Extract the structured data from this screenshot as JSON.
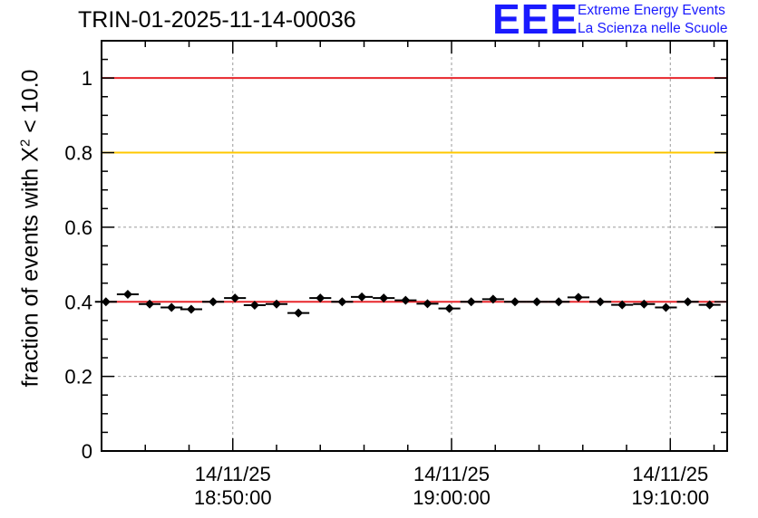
{
  "header": {
    "title": "TRIN-01-2025-11-14-00036"
  },
  "logo": {
    "mark": "EEE",
    "line1": "Extreme Energy Events",
    "line2": "La Scienza nelle Scuole",
    "color": "#1a1aff"
  },
  "chart_data": {
    "type": "scatter",
    "title": "TRIN-01-2025-11-14-00036",
    "ylabel_prefix": "fraction of events with X",
    "ylabel_sup": "2",
    "ylabel_suffix": " < 10.0",
    "xlabel": "",
    "ylim": [
      0,
      1.1
    ],
    "xlim_minutes": [
      -6.0,
      22.6
    ],
    "grid": true,
    "yticks": [
      {
        "value": 0,
        "label": "0"
      },
      {
        "value": 0.2,
        "label": "0.2"
      },
      {
        "value": 0.4,
        "label": "0.4"
      },
      {
        "value": 0.6,
        "label": "0.6"
      },
      {
        "value": 0.8,
        "label": "0.8"
      },
      {
        "value": 1,
        "label": "1"
      }
    ],
    "xticks": [
      {
        "minutes": 0,
        "date": "14/11/25",
        "time": "18:50:00"
      },
      {
        "minutes": 10,
        "date": "14/11/25",
        "time": "19:00:00"
      },
      {
        "minutes": 20,
        "date": "14/11/25",
        "time": "19:10:00"
      }
    ],
    "reference_lines": [
      {
        "value": 1.0,
        "color": "#e8262b"
      },
      {
        "value": 0.8,
        "color": "#ffc800"
      },
      {
        "value": 0.4,
        "color": "#e8262b"
      }
    ],
    "bin_width_minutes": 1.0,
    "series": [
      {
        "marker": "diamond",
        "color": "#000000",
        "x_minutes": [
          -5.8,
          -4.8,
          -3.8,
          -2.8,
          -1.9,
          -0.9,
          0.1,
          1.0,
          2.0,
          3.0,
          4.0,
          5.0,
          5.9,
          6.9,
          7.9,
          8.9,
          9.9,
          10.9,
          11.9,
          12.9,
          13.9,
          14.9,
          15.8,
          16.8,
          17.8,
          18.8,
          19.8,
          20.8,
          21.8
        ],
        "y": [
          0.4,
          0.42,
          0.394,
          0.385,
          0.38,
          0.4,
          0.41,
          0.391,
          0.394,
          0.37,
          0.41,
          0.4,
          0.413,
          0.41,
          0.404,
          0.395,
          0.382,
          0.4,
          0.407,
          0.4,
          0.4,
          0.4,
          0.412,
          0.4,
          0.392,
          0.394,
          0.385,
          0.4,
          0.392
        ]
      }
    ]
  }
}
